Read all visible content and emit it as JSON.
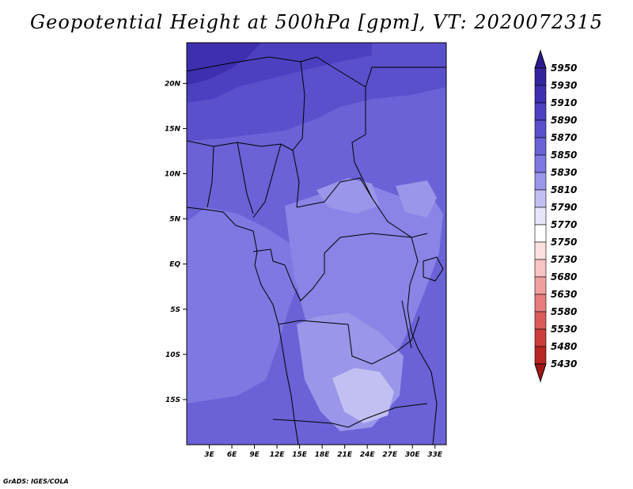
{
  "title": "Geopotential Height at 500hPa [gpm], VT: 2020072315",
  "credit": "GrADS: IGES/COLA",
  "map": {
    "lon_range": [
      0,
      34.5
    ],
    "lat_range": [
      -20,
      24.5
    ],
    "x_ticks": [
      {
        "lon": 3,
        "label": "3E"
      },
      {
        "lon": 6,
        "label": "6E"
      },
      {
        "lon": 9,
        "label": "9E"
      },
      {
        "lon": 12,
        "label": "12E"
      },
      {
        "lon": 15,
        "label": "15E"
      },
      {
        "lon": 18,
        "label": "18E"
      },
      {
        "lon": 21,
        "label": "21E"
      },
      {
        "lon": 24,
        "label": "24E"
      },
      {
        "lon": 27,
        "label": "27E"
      },
      {
        "lon": 30,
        "label": "30E"
      },
      {
        "lon": 33,
        "label": "33E"
      }
    ],
    "y_ticks": [
      {
        "lat": 20,
        "label": "20N"
      },
      {
        "lat": 15,
        "label": "15N"
      },
      {
        "lat": 10,
        "label": "10N"
      },
      {
        "lat": 5,
        "label": "5N"
      },
      {
        "lat": 0,
        "label": "EQ"
      },
      {
        "lat": -5,
        "label": "5S"
      },
      {
        "lat": -10,
        "label": "10S"
      },
      {
        "lat": -15,
        "label": "15S"
      }
    ]
  },
  "colorbar": {
    "levels": [
      "5950",
      "5930",
      "5910",
      "5890",
      "5870",
      "5850",
      "5830",
      "5810",
      "5790",
      "5770",
      "5750",
      "5730",
      "5680",
      "5630",
      "5580",
      "5530",
      "5480",
      "5430"
    ],
    "colors": [
      "#2a1c8e",
      "#33249e",
      "#3d2faf",
      "#4d40c0",
      "#5a50cc",
      "#6a62d6",
      "#7e78e2",
      "#9a96ea",
      "#c2c0f2",
      "#e6e6fa",
      "#ffffff",
      "#fce0e0",
      "#f8c4c4",
      "#f0a0a0",
      "#e67c7c",
      "#dc5a5a",
      "#cc3c3c",
      "#b82424",
      "#a01818"
    ]
  },
  "chart_data": {
    "type": "heatmap",
    "title": "Geopotential Height at 500hPa [gpm], VT: 2020072315",
    "xlabel": "",
    "ylabel": "",
    "x_range_deg_e": [
      0,
      34.5
    ],
    "y_range_deg_n": [
      -20,
      24.5
    ],
    "colorbar_levels_gpm": [
      5430,
      5480,
      5530,
      5580,
      5630,
      5680,
      5730,
      5750,
      5770,
      5790,
      5810,
      5830,
      5850,
      5870,
      5890,
      5910,
      5930,
      5950
    ],
    "regions": [
      {
        "area": "NW corner (near 1-5E, 22-24N)",
        "approx_value_gpm": 5905
      },
      {
        "area": "northern band 20-24N",
        "approx_value_gpm": 5885
      },
      {
        "area": "Sahel 10-18N",
        "approx_value_gpm": 5860
      },
      {
        "area": "Gulf of Guinea / Atlantic 0-10S",
        "approx_value_gpm": 5855
      },
      {
        "area": "Central Africa 5N-8S, 18-30E",
        "approx_value_gpm": 5840
      },
      {
        "area": "Angola/Zambia 8-17S, 13-26E",
        "approx_value_gpm": 5830
      },
      {
        "area": "core 14-18S, 19-23E",
        "approx_value_gpm": 5815
      }
    ]
  }
}
